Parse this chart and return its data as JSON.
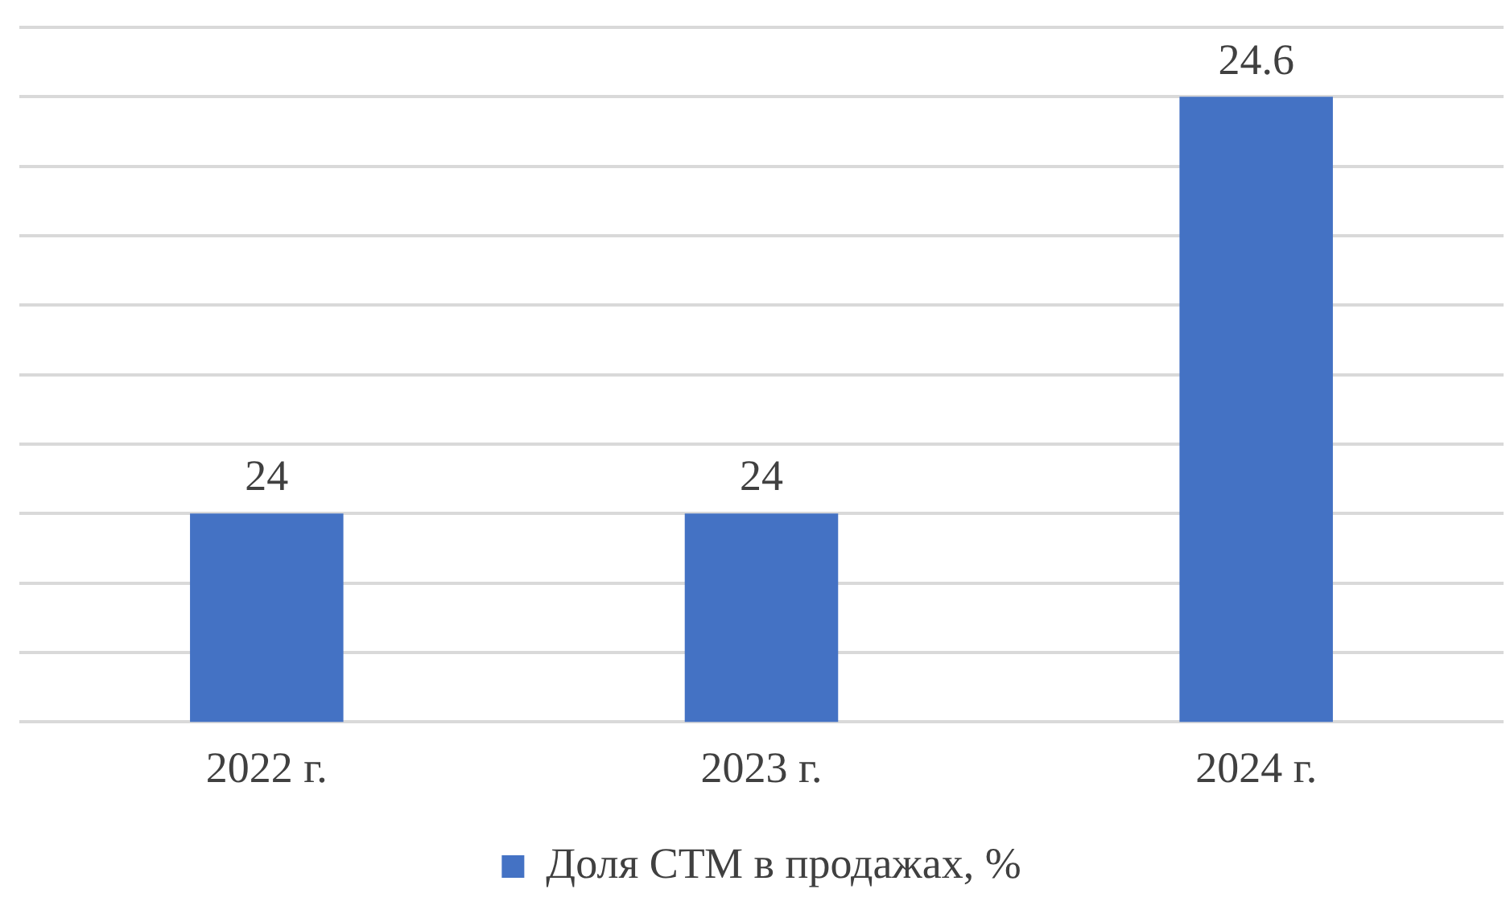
{
  "chart_data": {
    "type": "bar",
    "categories": [
      "2022 г.",
      "2023 г.",
      "2024 г."
    ],
    "series": [
      {
        "name": "Доля СТМ в продажах, %",
        "color": "#4472c4",
        "values": [
          24,
          24,
          24.6
        ]
      }
    ],
    "ylim": [
      23.7,
      24.7
    ],
    "yticks": [
      {
        "value": 23.7,
        "label": null
      },
      {
        "value": 23.8,
        "label": null
      },
      {
        "value": 23.9,
        "label": null
      },
      {
        "value": 24.0,
        "label": null
      },
      {
        "value": 24.1,
        "label": null
      },
      {
        "value": 24.2,
        "label": null
      },
      {
        "value": 24.3,
        "label": null
      },
      {
        "value": 24.4,
        "label": null
      },
      {
        "value": 24.5,
        "label": null
      },
      {
        "value": 24.6,
        "label": null
      },
      {
        "value": 24.7,
        "label": null
      }
    ],
    "tick_labels": "x",
    "grid": "y",
    "legend": "bottom",
    "data_labels": true
  }
}
